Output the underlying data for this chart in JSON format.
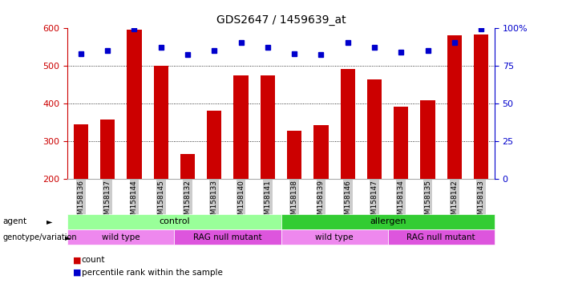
{
  "title": "GDS2647 / 1459639_at",
  "samples": [
    "GSM158136",
    "GSM158137",
    "GSM158144",
    "GSM158145",
    "GSM158132",
    "GSM158133",
    "GSM158140",
    "GSM158141",
    "GSM158138",
    "GSM158139",
    "GSM158146",
    "GSM158147",
    "GSM158134",
    "GSM158135",
    "GSM158142",
    "GSM158143"
  ],
  "counts": [
    345,
    357,
    595,
    500,
    265,
    380,
    473,
    473,
    328,
    342,
    490,
    462,
    390,
    407,
    580,
    582
  ],
  "percentile_ranks": [
    83,
    85,
    99,
    87,
    82,
    85,
    90,
    87,
    83,
    82,
    90,
    87,
    84,
    85,
    90,
    99
  ],
  "ymin": 200,
  "ymax": 600,
  "yticks_left": [
    200,
    300,
    400,
    500,
    600
  ],
  "right_yticks": [
    0,
    25,
    50,
    75,
    100
  ],
  "bar_color": "#cc0000",
  "scatter_color": "#0000cc",
  "agent_groups": [
    {
      "label": "control",
      "start": 0,
      "end": 8,
      "color": "#99ff99"
    },
    {
      "label": "allergen",
      "start": 8,
      "end": 16,
      "color": "#33cc33"
    }
  ],
  "genotype_groups": [
    {
      "label": "wild type",
      "start": 0,
      "end": 4,
      "color": "#ee88ee"
    },
    {
      "label": "RAG null mutant",
      "start": 4,
      "end": 8,
      "color": "#dd55dd"
    },
    {
      "label": "wild type",
      "start": 8,
      "end": 12,
      "color": "#ee88ee"
    },
    {
      "label": "RAG null mutant",
      "start": 12,
      "end": 16,
      "color": "#dd55dd"
    }
  ],
  "legend_count_label": "count",
  "legend_pct_label": "percentile rank within the sample",
  "xlabel_agent": "agent",
  "xlabel_genotype": "genotype/variation",
  "background_color": "#ffffff",
  "tick_label_bg": "#cccccc"
}
